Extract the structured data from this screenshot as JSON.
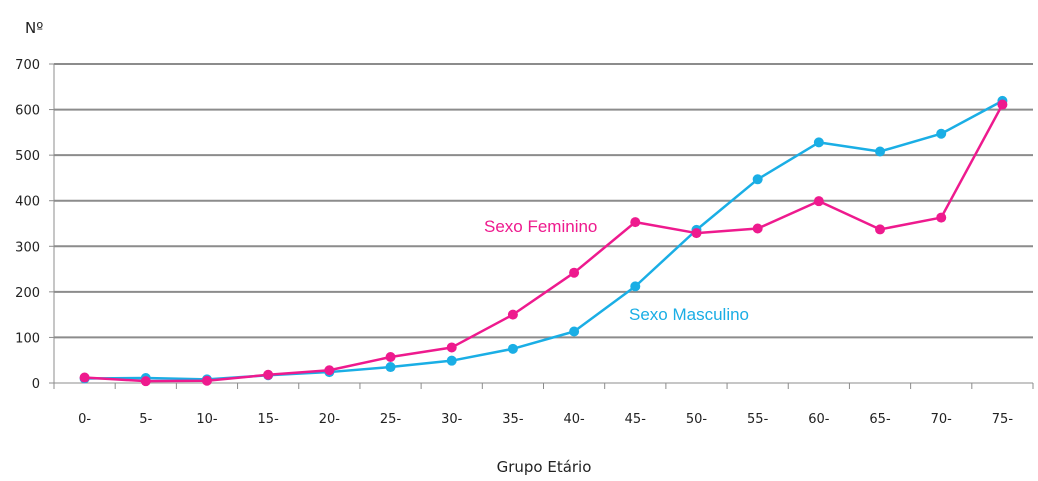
{
  "chart_data": {
    "type": "line",
    "title": "",
    "ylabel": "Nº",
    "xlabel": "Grupo Etário",
    "categories": [
      "0-",
      "5-",
      "10-",
      "15-",
      "20-",
      "25-",
      "30-",
      "35-",
      "40-",
      "45-",
      "50-",
      "55-",
      "60-",
      "65-",
      "70-",
      "75-"
    ],
    "ylim": [
      0,
      700
    ],
    "yticks": [
      0,
      100,
      200,
      300,
      400,
      500,
      600,
      700
    ],
    "grid": true,
    "legend": "inline labels",
    "series": [
      {
        "name": "Sexo Masculino",
        "color": "#1aaee5",
        "values": [
          10,
          11,
          8,
          17,
          24,
          35,
          49,
          75,
          113,
          212,
          336,
          447,
          528,
          508,
          547,
          619
        ]
      },
      {
        "name": "Sexo Feminino",
        "color": "#ee1a8e",
        "values": [
          12,
          4,
          5,
          18,
          28,
          57,
          78,
          150,
          242,
          353,
          329,
          339,
          399,
          337,
          363,
          611
        ]
      }
    ]
  }
}
